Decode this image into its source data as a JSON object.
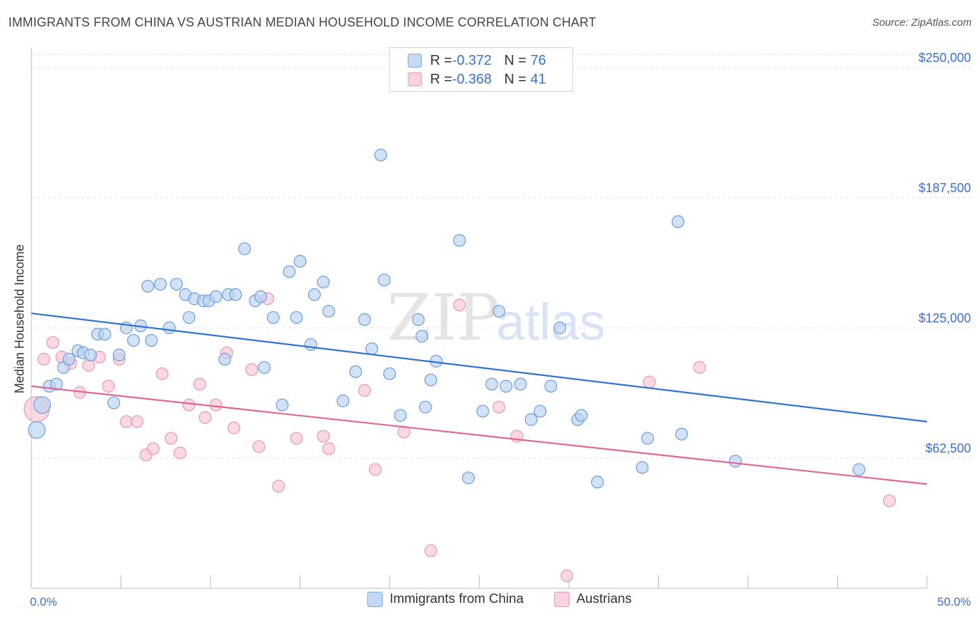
{
  "header": {
    "title": "IMMIGRANTS FROM CHINA VS AUSTRIAN MEDIAN HOUSEHOLD INCOME CORRELATION CHART",
    "source": "Source: ZipAtlas.com"
  },
  "watermark": {
    "zip": "ZIP",
    "atlas": "atlas"
  },
  "legend": {
    "rows": [
      {
        "r_label": "R = ",
        "r_value": "-0.372",
        "n_label": "N = ",
        "n_value": "76",
        "color": "#a9c8f0"
      },
      {
        "r_label": "R = ",
        "r_value": "-0.368",
        "n_label": "N = ",
        "n_value": "41",
        "color": "#f6b8cb"
      }
    ]
  },
  "bottom_legend": {
    "china": "Immigrants from China",
    "austrians": "Austrians"
  },
  "chart_data": {
    "type": "scatter",
    "ylabel": "Median Household Income",
    "xlim": [
      0,
      50
    ],
    "ylim": [
      0,
      250000
    ],
    "x_tick_labels": {
      "left": "0.0%",
      "right": "50.0%"
    },
    "y_ticks": [
      {
        "value": 62500,
        "label": "$62,500"
      },
      {
        "value": 125000,
        "label": "$125,000"
      },
      {
        "value": 187500,
        "label": "$187,500"
      },
      {
        "value": 250000,
        "label": "$250,000"
      }
    ],
    "grid": true,
    "colors": {
      "china": "#4a86d8",
      "china_fill": "#a9c8f0",
      "austrians": "#e0608e",
      "austrians_fill": "#f6b8cb",
      "axis_text": "#3b6fd0"
    },
    "series": [
      {
        "name": "Immigrants from China",
        "trend": {
          "x": [
            0,
            50
          ],
          "y": [
            132000,
            80000
          ]
        },
        "points": [
          [
            0.6,
            88000
          ],
          [
            0.3,
            76000
          ],
          [
            1.0,
            97000
          ],
          [
            1.4,
            98000
          ],
          [
            1.8,
            106000
          ],
          [
            2.1,
            110000
          ],
          [
            2.6,
            114000
          ],
          [
            2.9,
            113000
          ],
          [
            3.3,
            112000
          ],
          [
            3.7,
            122000
          ],
          [
            4.1,
            122000
          ],
          [
            4.6,
            89000
          ],
          [
            4.9,
            112000
          ],
          [
            5.3,
            125000
          ],
          [
            5.7,
            119000
          ],
          [
            6.1,
            126000
          ],
          [
            6.5,
            145000
          ],
          [
            6.7,
            119000
          ],
          [
            7.2,
            146000
          ],
          [
            7.7,
            125000
          ],
          [
            8.1,
            146000
          ],
          [
            8.6,
            141000
          ],
          [
            8.8,
            130000
          ],
          [
            9.1,
            139000
          ],
          [
            9.6,
            138000
          ],
          [
            9.9,
            138000
          ],
          [
            10.3,
            140000
          ],
          [
            10.8,
            110000
          ],
          [
            11.0,
            141000
          ],
          [
            11.4,
            141000
          ],
          [
            11.9,
            163000
          ],
          [
            12.5,
            138000
          ],
          [
            12.8,
            140000
          ],
          [
            13.0,
            106000
          ],
          [
            13.5,
            130000
          ],
          [
            14.0,
            88000
          ],
          [
            14.4,
            152000
          ],
          [
            14.8,
            130000
          ],
          [
            15.0,
            157000
          ],
          [
            15.6,
            117000
          ],
          [
            15.8,
            141000
          ],
          [
            16.3,
            147000
          ],
          [
            16.6,
            133000
          ],
          [
            17.4,
            90000
          ],
          [
            18.1,
            104000
          ],
          [
            18.6,
            129000
          ],
          [
            19.0,
            115000
          ],
          [
            19.5,
            208000
          ],
          [
            19.7,
            148000
          ],
          [
            20.0,
            103000
          ],
          [
            20.6,
            83000
          ],
          [
            21.6,
            129000
          ],
          [
            21.8,
            121000
          ],
          [
            22.0,
            87000
          ],
          [
            22.3,
            100000
          ],
          [
            22.6,
            109000
          ],
          [
            23.9,
            167000
          ],
          [
            24.4,
            53000
          ],
          [
            25.2,
            85000
          ],
          [
            25.7,
            98000
          ],
          [
            26.1,
            133000
          ],
          [
            26.5,
            97000
          ],
          [
            27.3,
            98000
          ],
          [
            27.9,
            81000
          ],
          [
            28.4,
            85000
          ],
          [
            29.0,
            97000
          ],
          [
            29.5,
            125000
          ],
          [
            30.5,
            81000
          ],
          [
            30.7,
            83000
          ],
          [
            31.6,
            51000
          ],
          [
            34.1,
            58000
          ],
          [
            34.4,
            72000
          ],
          [
            36.1,
            176000
          ],
          [
            36.3,
            74000
          ],
          [
            39.3,
            61000
          ],
          [
            46.2,
            57000
          ]
        ]
      },
      {
        "name": "Austrians",
        "trend": {
          "x": [
            0,
            50
          ],
          "y": [
            97000,
            50000
          ]
        },
        "points": [
          [
            0.3,
            86000
          ],
          [
            0.7,
            110000
          ],
          [
            1.2,
            118000
          ],
          [
            1.7,
            111000
          ],
          [
            2.2,
            108000
          ],
          [
            2.7,
            94000
          ],
          [
            3.2,
            107000
          ],
          [
            3.8,
            111000
          ],
          [
            4.3,
            97000
          ],
          [
            4.9,
            110000
          ],
          [
            5.3,
            80000
          ],
          [
            5.9,
            80000
          ],
          [
            6.4,
            64000
          ],
          [
            6.8,
            67000
          ],
          [
            7.3,
            103000
          ],
          [
            7.8,
            72000
          ],
          [
            8.3,
            65000
          ],
          [
            8.8,
            88000
          ],
          [
            9.4,
            98000
          ],
          [
            9.7,
            82000
          ],
          [
            10.3,
            88000
          ],
          [
            10.9,
            113000
          ],
          [
            11.3,
            77000
          ],
          [
            12.3,
            105000
          ],
          [
            12.7,
            68000
          ],
          [
            13.2,
            139000
          ],
          [
            13.8,
            49000
          ],
          [
            14.8,
            72000
          ],
          [
            16.3,
            73000
          ],
          [
            16.6,
            67000
          ],
          [
            18.6,
            95000
          ],
          [
            19.2,
            57000
          ],
          [
            20.8,
            75000
          ],
          [
            22.3,
            18000
          ],
          [
            23.9,
            136000
          ],
          [
            26.1,
            87000
          ],
          [
            27.1,
            73000
          ],
          [
            29.9,
            6000
          ],
          [
            34.5,
            99000
          ],
          [
            37.3,
            106000
          ],
          [
            47.9,
            42000
          ]
        ]
      }
    ]
  }
}
